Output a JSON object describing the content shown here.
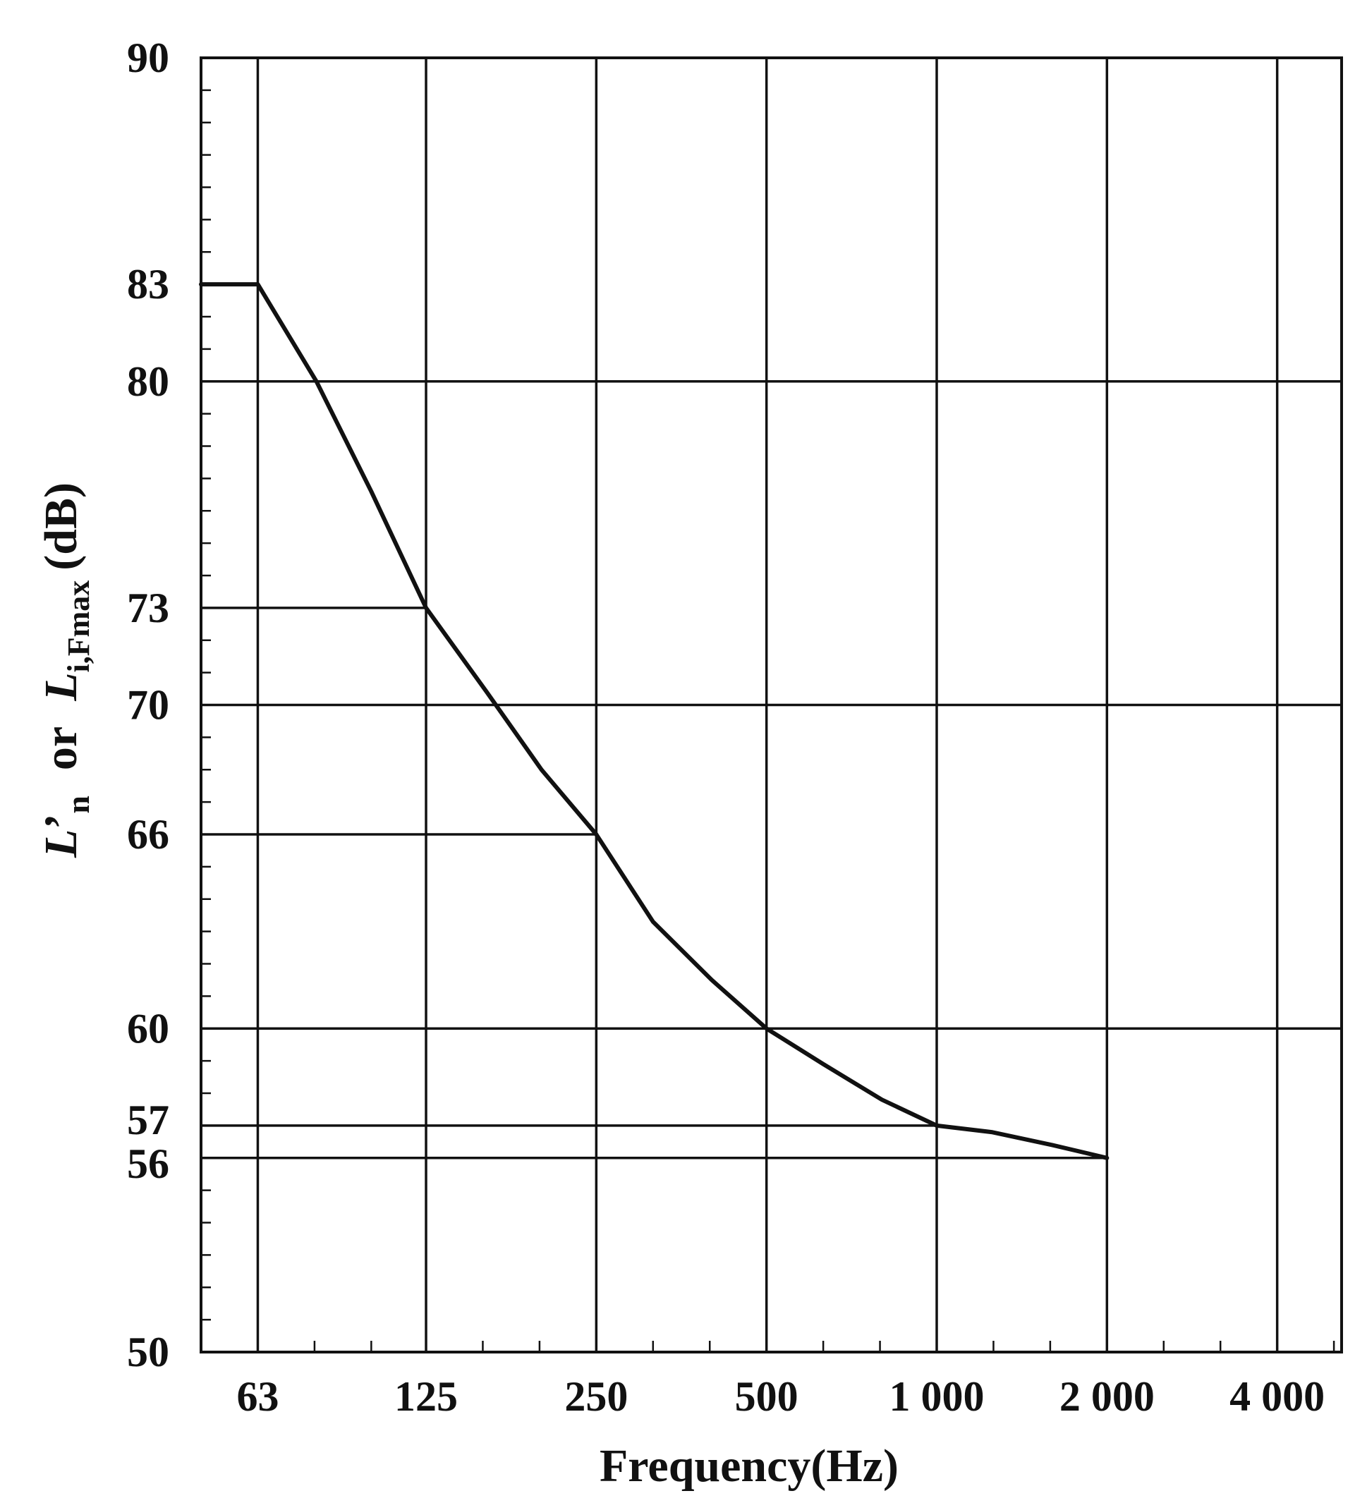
{
  "chart_data": {
    "type": "line",
    "title": "",
    "xlabel": "Frequency(Hz)",
    "ylabel": {
      "main_symbol": "L",
      "prime": "’",
      "main_sub": "n",
      "connector": "or",
      "alt_symbol": "L",
      "alt_sub": "i,Fmax",
      "unit": "(dB)"
    },
    "x_scale": "log2",
    "x_ticks": [
      {
        "value": 63,
        "label": "63"
      },
      {
        "value": 125,
        "label": "125"
      },
      {
        "value": 250,
        "label": "250"
      },
      {
        "value": 500,
        "label": "500"
      },
      {
        "value": 1000,
        "label": "1 000"
      },
      {
        "value": 2000,
        "label": "2 000"
      },
      {
        "value": 4000,
        "label": "4 000"
      }
    ],
    "y_ticks": [
      {
        "value": 90,
        "label": "90"
      },
      {
        "value": 83,
        "label": "83"
      },
      {
        "value": 80,
        "label": "80"
      },
      {
        "value": 73,
        "label": "73"
      },
      {
        "value": 70,
        "label": "70"
      },
      {
        "value": 66,
        "label": "66"
      },
      {
        "value": 60,
        "label": "60"
      },
      {
        "value": 57,
        "label": "57"
      },
      {
        "value": 56,
        "label": "56"
      },
      {
        "value": 50,
        "label": "50"
      }
    ],
    "ylim": [
      50,
      90
    ],
    "xlim": [
      50,
      5200
    ],
    "grid": true,
    "horizontal_gridlines": [
      80,
      70,
      60
    ],
    "reference_lines": [
      {
        "y": 83,
        "to_x": 63
      },
      {
        "y": 73,
        "to_x": 125
      },
      {
        "y": 66,
        "to_x": 250
      },
      {
        "y": 57,
        "to_x": 1000
      },
      {
        "y": 56,
        "to_x": 2000
      }
    ],
    "series": [
      {
        "x": [
          50,
          63,
          80,
          100,
          125,
          160,
          200,
          250,
          315,
          400,
          500,
          630,
          800,
          1000,
          1250,
          1600,
          2000
        ],
        "values": [
          83,
          83,
          80,
          76.6,
          73,
          70.4,
          68,
          66,
          63.3,
          61.5,
          60,
          58.9,
          57.8,
          57,
          56.8,
          56.4,
          56
        ]
      }
    ]
  }
}
